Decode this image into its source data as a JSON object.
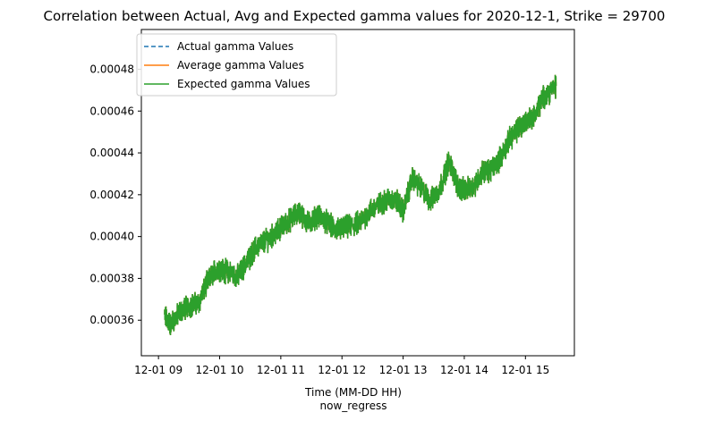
{
  "chart_data": {
    "type": "line",
    "title": "Correlation between Actual, Avg and Expected gamma values for 2020-12-1, Strike = 29700",
    "xlabel": "Time (MM-DD HH)",
    "xlabel2": "now_regress",
    "ylabel": "",
    "x_ticks": [
      "12-01 09",
      "12-01 10",
      "12-01 11",
      "12-01 12",
      "12-01 13",
      "12-01 14",
      "12-01 15"
    ],
    "x_tick_hours": [
      9,
      10,
      11,
      12,
      13,
      14,
      15
    ],
    "xlim_hours": [
      8.72,
      15.8
    ],
    "y_ticks": [
      "0.00036",
      "0.00038",
      "0.00040",
      "0.00042",
      "0.00044",
      "0.00046",
      "0.00048"
    ],
    "y_tick_values": [
      0.00036,
      0.00038,
      0.0004,
      0.00042,
      0.00044,
      0.00046,
      0.00048
    ],
    "ylim": [
      0.000343,
      0.000499
    ],
    "legend_position": "upper-left",
    "colors": {
      "actual": "#1f77b4",
      "average": "#ff7f0e",
      "expected": "#2ca02c"
    },
    "series": [
      {
        "name": "Actual gamma Values",
        "style": "dashed",
        "color": "#1f77b4"
      },
      {
        "name": "Average gamma Values",
        "style": "solid",
        "color": "#ff7f0e"
      },
      {
        "name": "Expected gamma Values",
        "style": "solid",
        "color": "#2ca02c"
      }
    ],
    "x_hours": [
      9.1,
      9.2,
      9.35,
      9.5,
      9.65,
      9.8,
      9.95,
      10.05,
      10.15,
      10.3,
      10.45,
      10.6,
      10.75,
      10.9,
      11.0,
      11.15,
      11.3,
      11.45,
      11.6,
      11.75,
      11.9,
      12.0,
      12.15,
      12.3,
      12.45,
      12.6,
      12.75,
      12.9,
      13.0,
      13.15,
      13.3,
      13.45,
      13.6,
      13.75,
      13.9,
      14.0,
      14.15,
      14.3,
      14.45,
      14.6,
      14.75,
      14.9,
      15.0,
      15.15,
      15.3,
      15.5
    ],
    "values": [
      0.000362,
      0.000358,
      0.000364,
      0.000367,
      0.000368,
      0.000378,
      0.000385,
      0.000384,
      0.000383,
      0.000381,
      0.000388,
      0.000395,
      0.000398,
      0.000401,
      0.000404,
      0.000408,
      0.000412,
      0.000406,
      0.00041,
      0.000407,
      0.000403,
      0.000404,
      0.000405,
      0.000407,
      0.000412,
      0.000415,
      0.000418,
      0.000417,
      0.000412,
      0.000428,
      0.000423,
      0.000417,
      0.000423,
      0.000436,
      0.000424,
      0.000422,
      0.000424,
      0.000431,
      0.000432,
      0.000438,
      0.000447,
      0.000452,
      0.000455,
      0.000458,
      0.000467,
      0.000472
    ]
  }
}
